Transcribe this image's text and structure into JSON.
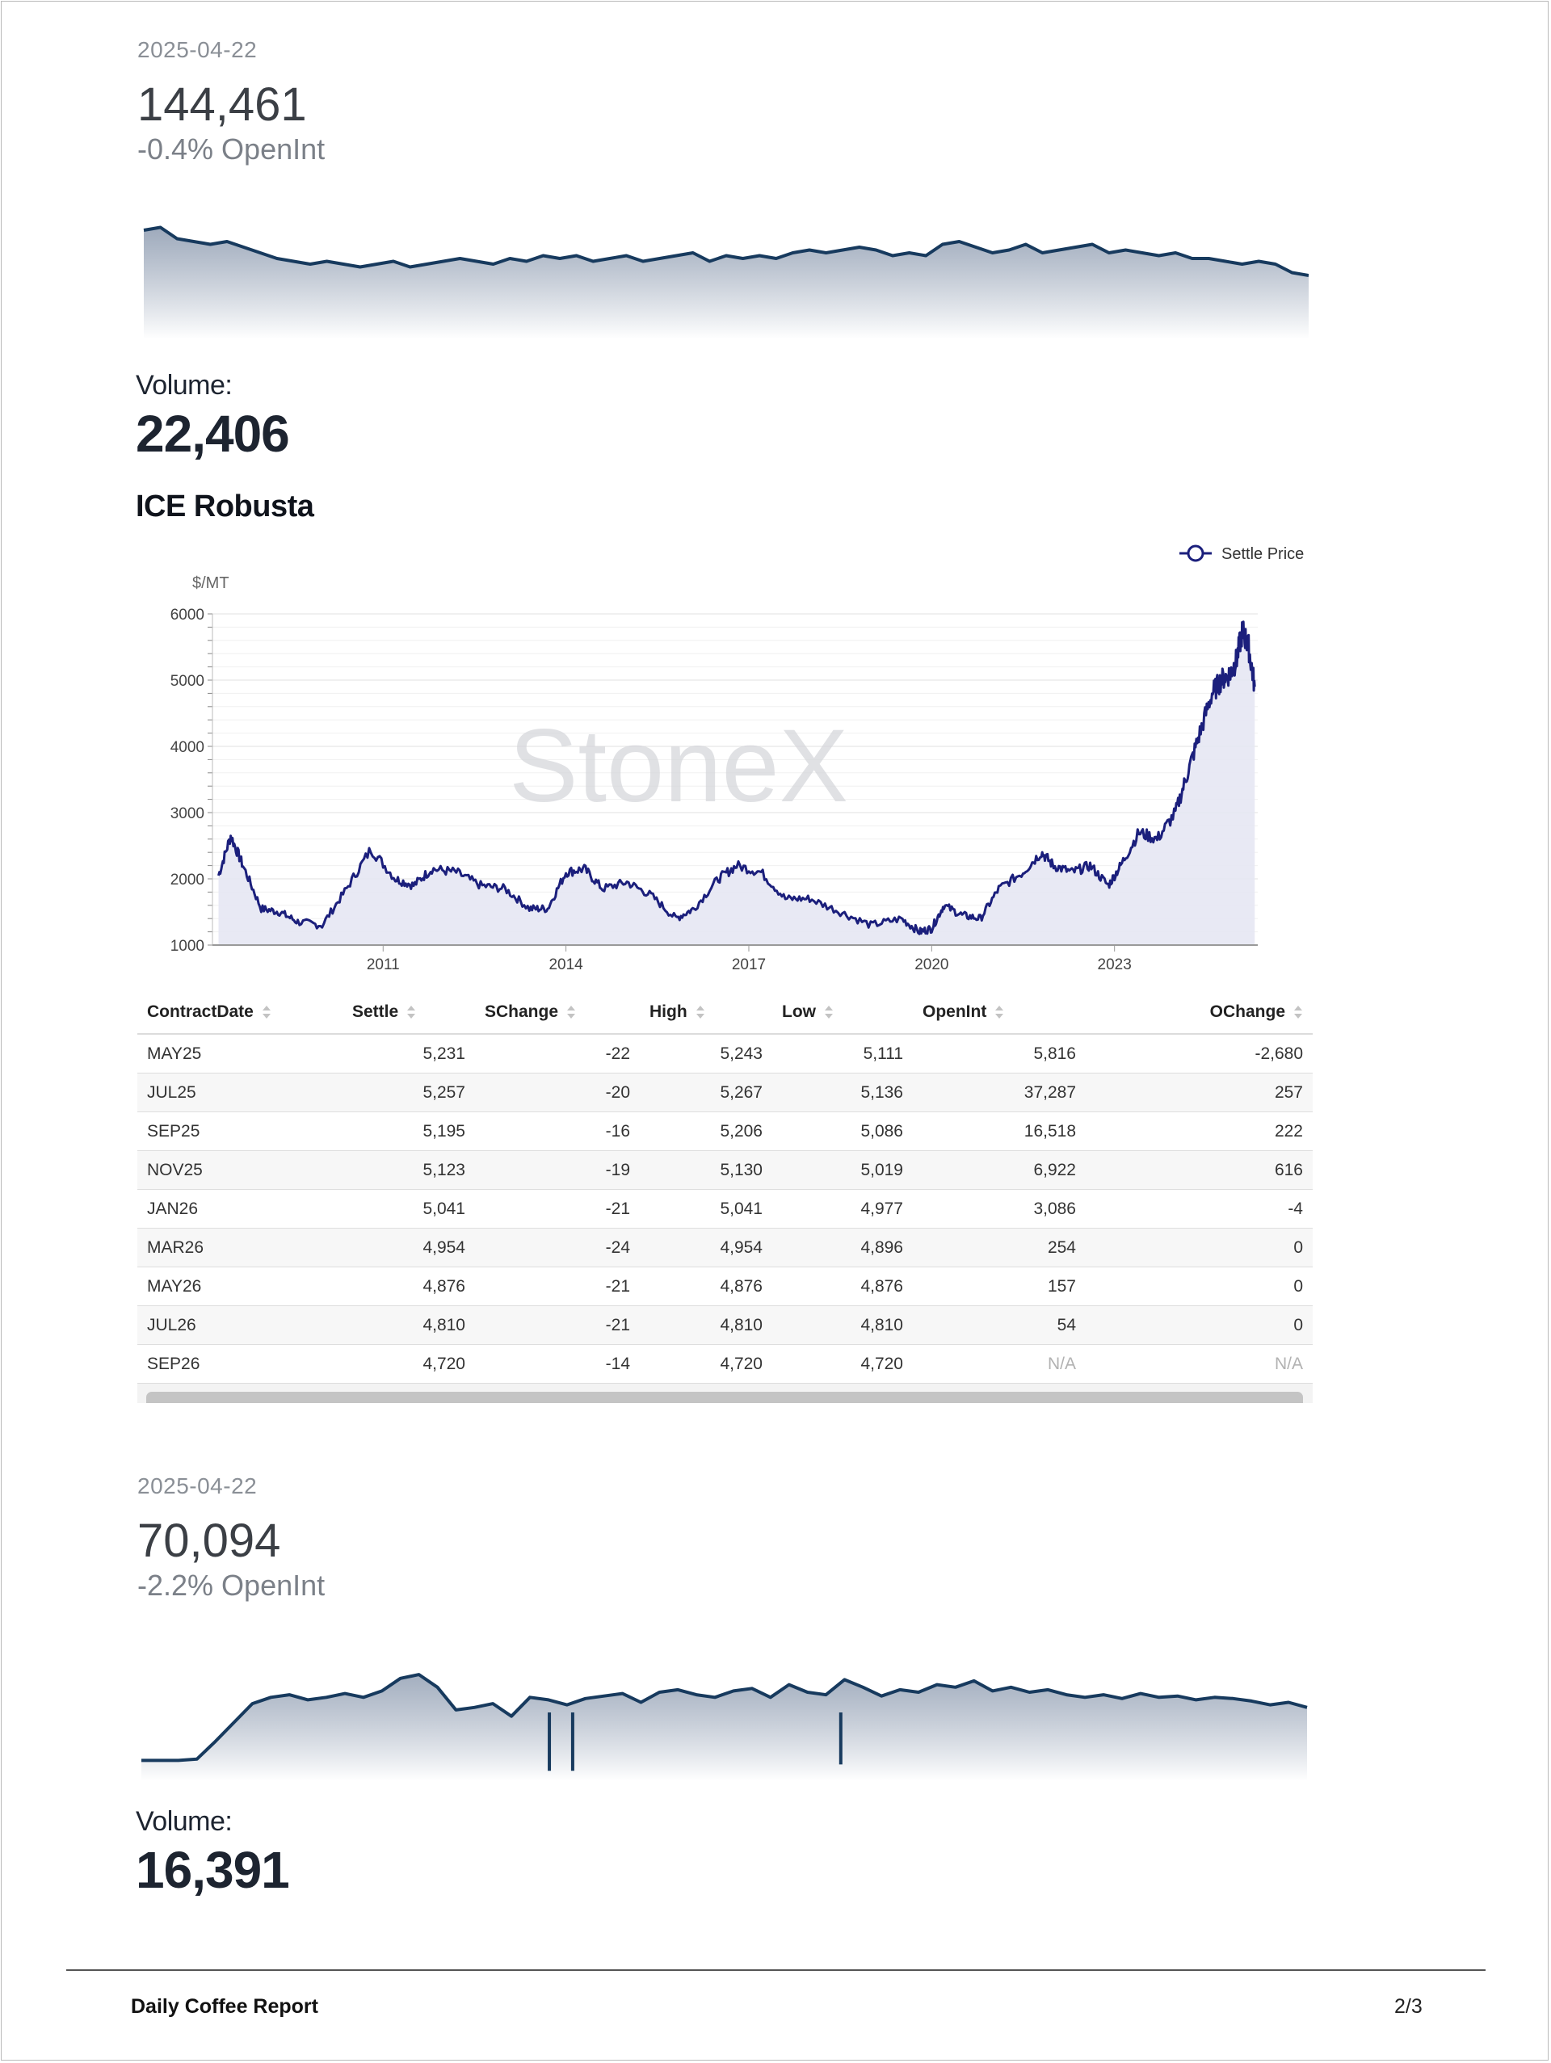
{
  "colors": {
    "primary_line": "#173a5e",
    "robusta_line": "#1b1f7c",
    "robusta_fill": "#e6e7f3"
  },
  "block1": {
    "date": "2025-04-22",
    "value": "144,461",
    "change": "-0.4% OpenInt",
    "volume_label": "Volume:",
    "volume_value": "22,406"
  },
  "robusta": {
    "title": "ICE Robusta",
    "legend": "Settle Price",
    "y_unit": "$/MT",
    "y_ticks": [
      "1000",
      "2000",
      "3000",
      "4000",
      "5000",
      "6000"
    ],
    "x_ticks": [
      "2011",
      "2014",
      "2017",
      "2020",
      "2023"
    ],
    "watermark": "StoneX"
  },
  "table": {
    "headers": [
      "ContractDate",
      "Settle",
      "SChange",
      "High",
      "Low",
      "OpenInt",
      "OChange"
    ],
    "rows": [
      [
        "MAY25",
        "5,231",
        "-22",
        "5,243",
        "5,111",
        "5,816",
        "-2,680"
      ],
      [
        "JUL25",
        "5,257",
        "-20",
        "5,267",
        "5,136",
        "37,287",
        "257"
      ],
      [
        "SEP25",
        "5,195",
        "-16",
        "5,206",
        "5,086",
        "16,518",
        "222"
      ],
      [
        "NOV25",
        "5,123",
        "-19",
        "5,130",
        "5,019",
        "6,922",
        "616"
      ],
      [
        "JAN26",
        "5,041",
        "-21",
        "5,041",
        "4,977",
        "3,086",
        "-4"
      ],
      [
        "MAR26",
        "4,954",
        "-24",
        "4,954",
        "4,896",
        "254",
        "0"
      ],
      [
        "MAY26",
        "4,876",
        "-21",
        "4,876",
        "4,876",
        "157",
        "0"
      ],
      [
        "JUL26",
        "4,810",
        "-21",
        "4,810",
        "4,810",
        "54",
        "0"
      ],
      [
        "SEP26",
        "4,720",
        "-14",
        "4,720",
        "4,720",
        "N/A",
        "N/A"
      ]
    ]
  },
  "block2": {
    "date": "2025-04-22",
    "value": "70,094",
    "change": "-2.2% OpenInt",
    "volume_label": "Volume:",
    "volume_value": "16,391"
  },
  "footer": {
    "title": "Daily Coffee Report",
    "page": "2/3"
  },
  "chart_data": [
    {
      "type": "area",
      "title": "",
      "xlabel": "",
      "ylabel": "",
      "series": [
        {
          "values": [
            100,
            101,
            97,
            96,
            95,
            96,
            94,
            92,
            90,
            89,
            88,
            89,
            88,
            87,
            88,
            89,
            87,
            88,
            89,
            90,
            89,
            88,
            90,
            89,
            91,
            90,
            91,
            89,
            90,
            91,
            89,
            90,
            91,
            92,
            89,
            91,
            90,
            91,
            90,
            92,
            93,
            92,
            93,
            94,
            93,
            91,
            92,
            91,
            95,
            96,
            94,
            92,
            93,
            95,
            92,
            93,
            94,
            95,
            92,
            93,
            92,
            91,
            92,
            90,
            90,
            89,
            88,
            89,
            88,
            85,
            84
          ]
        }
      ]
    },
    {
      "type": "line",
      "title": "",
      "ylabel": "$/MT",
      "ylim": [
        1000,
        6000
      ],
      "grid": true,
      "legend": "top-right",
      "x": [
        2008.3,
        2008.5,
        2008.7,
        2009.0,
        2009.3,
        2009.6,
        2010.0,
        2010.4,
        2010.8,
        2011.2,
        2011.5,
        2011.8,
        2012.2,
        2012.6,
        2013.0,
        2013.4,
        2013.7,
        2014.0,
        2014.3,
        2014.6,
        2015.0,
        2015.4,
        2015.8,
        2016.1,
        2016.5,
        2016.8,
        2017.2,
        2017.6,
        2018.0,
        2018.5,
        2019.0,
        2019.5,
        2019.8,
        2020.0,
        2020.2,
        2020.5,
        2020.8,
        2021.1,
        2021.5,
        2021.8,
        2022.0,
        2022.3,
        2022.6,
        2022.9,
        2023.1,
        2023.4,
        2023.7,
        2024.0,
        2024.2,
        2024.4,
        2024.6,
        2024.75,
        2024.9,
        2025.0,
        2025.1,
        2025.2,
        2025.3
      ],
      "series": [
        {
          "name": "Settle Price",
          "values": [
            2050,
            2650,
            2200,
            1550,
            1500,
            1350,
            1300,
            1850,
            2450,
            2000,
            1900,
            2150,
            2100,
            1900,
            1850,
            1550,
            1550,
            2100,
            2150,
            1850,
            1950,
            1750,
            1400,
            1550,
            2000,
            2200,
            2100,
            1700,
            1700,
            1500,
            1300,
            1400,
            1200,
            1250,
            1600,
            1450,
            1400,
            1850,
            2100,
            2400,
            2200,
            2100,
            2200,
            1900,
            2200,
            2700,
            2600,
            3000,
            3600,
            4200,
            4800,
            5000,
            5100,
            5300,
            5750,
            5500,
            4900
          ]
        }
      ]
    },
    {
      "type": "area",
      "title": "",
      "xlabel": "",
      "ylabel": "",
      "series": [
        {
          "values": [
            30,
            30,
            30,
            31,
            45,
            60,
            75,
            80,
            82,
            78,
            80,
            83,
            80,
            85,
            95,
            98,
            88,
            70,
            72,
            75,
            65,
            80,
            78,
            74,
            79,
            81,
            83,
            76,
            84,
            86,
            82,
            80,
            85,
            87,
            80,
            90,
            84,
            82,
            94,
            88,
            81,
            86,
            84,
            90,
            88,
            93,
            85,
            88,
            84,
            86,
            82,
            80,
            82,
            79,
            83,
            80,
            81,
            78,
            80,
            79,
            77,
            74,
            76,
            72
          ]
        }
      ],
      "spikes": [
        [
          0.35,
          25
        ],
        [
          0.37,
          25
        ],
        [
          0.6,
          30
        ]
      ]
    }
  ]
}
